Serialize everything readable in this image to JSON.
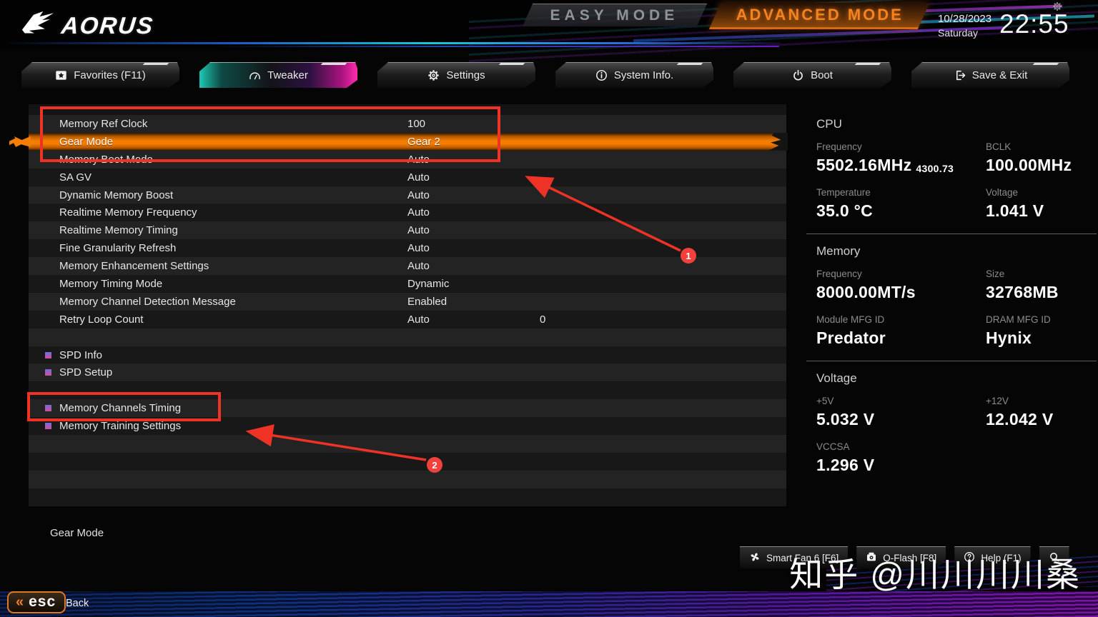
{
  "header": {
    "brand": "AORUS",
    "easy_mode_label": "EASY MODE",
    "advanced_mode_label": "ADVANCED MODE",
    "date": "10/28/2023",
    "day": "Saturday",
    "time": "22:55"
  },
  "tabs": [
    {
      "label": "Favorites (F11)",
      "icon": "star-icon",
      "active": false
    },
    {
      "label": "Tweaker",
      "icon": "gauge-icon",
      "active": true
    },
    {
      "label": "Settings",
      "icon": "gear-icon",
      "active": false
    },
    {
      "label": "System Info.",
      "icon": "info-icon",
      "active": false
    },
    {
      "label": "Boot",
      "icon": "power-icon",
      "active": false
    },
    {
      "label": "Save & Exit",
      "icon": "exit-icon",
      "active": false
    }
  ],
  "settings_list": {
    "slots": [
      {
        "type": "setting",
        "label": "Memory Ref Clock",
        "value": "100"
      },
      {
        "type": "setting",
        "label": "Gear Mode",
        "value": "Gear 2",
        "selected": true
      },
      {
        "type": "setting",
        "label": "Memory Boot Mode",
        "value": "Auto"
      },
      {
        "type": "setting",
        "label": "SA GV",
        "value": "Auto"
      },
      {
        "type": "setting",
        "label": "Dynamic Memory Boost",
        "value": "Auto"
      },
      {
        "type": "setting",
        "label": "Realtime Memory Frequency",
        "value": "Auto"
      },
      {
        "type": "setting",
        "label": "Realtime Memory Timing",
        "value": "Auto"
      },
      {
        "type": "setting",
        "label": "Fine Granularity Refresh",
        "value": "Auto"
      },
      {
        "type": "setting",
        "label": "Memory Enhancement Settings",
        "value": "Auto"
      },
      {
        "type": "setting",
        "label": "Memory Timing Mode",
        "value": "Dynamic"
      },
      {
        "type": "setting",
        "label": "Memory Channel Detection Message",
        "value": "Enabled"
      },
      {
        "type": "setting",
        "label": "Retry Loop Count",
        "value": "Auto",
        "value2": "0"
      },
      {
        "type": "empty"
      },
      {
        "type": "submenu",
        "label": "SPD Info"
      },
      {
        "type": "submenu",
        "label": "SPD Setup"
      },
      {
        "type": "empty"
      },
      {
        "type": "submenu",
        "label": "Memory Channels Timing"
      },
      {
        "type": "submenu",
        "label": "Memory Training Settings"
      },
      {
        "type": "empty"
      },
      {
        "type": "empty"
      },
      {
        "type": "empty"
      },
      {
        "type": "empty"
      }
    ]
  },
  "sidebar": {
    "sections": [
      {
        "title": "CPU",
        "fields": [
          {
            "label": "Frequency",
            "value": "5502.16MHz",
            "sub": "4300.73"
          },
          {
            "label": "BCLK",
            "value": "100.00MHz"
          },
          {
            "label": "Temperature",
            "value": "35.0 °C"
          },
          {
            "label": "Voltage",
            "value": "1.041 V"
          }
        ]
      },
      {
        "title": "Memory",
        "fields": [
          {
            "label": "Frequency",
            "value": "8000.00MT/s"
          },
          {
            "label": "Size",
            "value": "32768MB"
          },
          {
            "label": "Module MFG ID",
            "value": "Predator"
          },
          {
            "label": "DRAM MFG ID",
            "value": "Hynix"
          }
        ]
      },
      {
        "title": "Voltage",
        "fields": [
          {
            "label": "+5V",
            "value": "5.032 V"
          },
          {
            "label": "+12V",
            "value": "12.042 V"
          },
          {
            "label": "VCCSA",
            "value": "1.296 V"
          }
        ]
      }
    ]
  },
  "footer": {
    "help_text": "Gear Mode",
    "buttons": [
      {
        "name": "smart-fan-button",
        "label": "Smart Fan 6 [F6]",
        "icon": "fan-icon"
      },
      {
        "name": "qflash-button",
        "label": "Q-Flash [F8]",
        "icon": "qflash-icon"
      },
      {
        "name": "help-button",
        "label": "Help (F1)",
        "icon": "question-icon"
      },
      {
        "name": "search-button",
        "label": "",
        "icon": "search-icon"
      }
    ],
    "esc_key": "esc",
    "esc_label": "Back"
  },
  "watermark": "知乎 @川川川川桑",
  "annotations": {
    "callouts": [
      {
        "label": "1"
      },
      {
        "label": "2"
      }
    ]
  },
  "colors": {
    "accent_orange": "#f57d00",
    "annotation_red": "#ee3226",
    "active_tab_teal": "#1ec8b4",
    "active_tab_magenta": "#ff2bb0",
    "advanced_mode_orange": "#f6821e"
  }
}
